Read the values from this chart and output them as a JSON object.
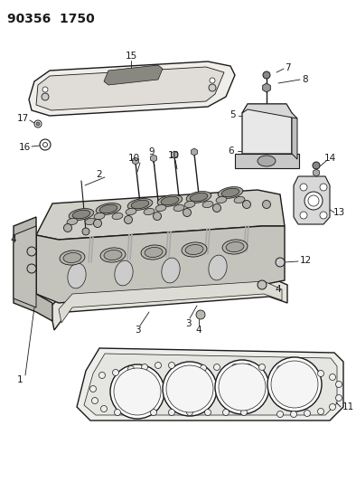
{
  "title": "90356 1750",
  "bg_color": "#ffffff",
  "line_color": "#1a1a1a",
  "figsize": [
    3.94,
    5.33
  ],
  "dpi": 100,
  "lw": 0.9,
  "fill_light": "#e8e8e8",
  "fill_dark": "#999999",
  "fill_mid": "#cccccc",
  "fill_white": "#ffffff",
  "label_fs": 7.5
}
